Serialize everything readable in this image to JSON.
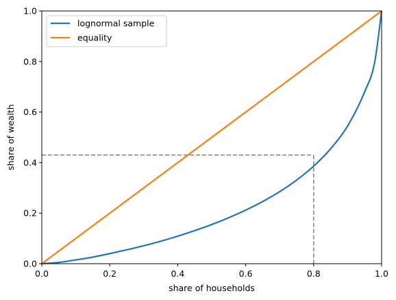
{
  "chart_data": {
    "type": "line",
    "title": "",
    "xlabel": "share of households",
    "ylabel": "share of wealth",
    "xlim": [
      0.0,
      1.0
    ],
    "ylim": [
      0.0,
      1.0
    ],
    "xticks": [
      "0.0",
      "0.2",
      "0.4",
      "0.6",
      "0.8",
      "1.0"
    ],
    "yticks": [
      "0.0",
      "0.2",
      "0.4",
      "0.6",
      "0.8",
      "1.0"
    ],
    "grid": false,
    "legend_position": "top-left",
    "series": [
      {
        "name": "lognormal sample",
        "color": "#1f77b4",
        "x": [
          0.0,
          0.05,
          0.1,
          0.15,
          0.2,
          0.25,
          0.3,
          0.35,
          0.4,
          0.45,
          0.5,
          0.55,
          0.6,
          0.65,
          0.7,
          0.75,
          0.8,
          0.85,
          0.9,
          0.95,
          0.98,
          1.0
        ],
        "y": [
          0.0,
          0.005,
          0.015,
          0.026,
          0.04,
          0.055,
          0.071,
          0.089,
          0.109,
          0.131,
          0.155,
          0.182,
          0.212,
          0.246,
          0.285,
          0.331,
          0.386,
          0.455,
          0.545,
          0.68,
          0.8,
          1.0
        ]
      },
      {
        "name": "equality",
        "color": "#ff7f0e",
        "x": [
          0.0,
          1.0
        ],
        "y": [
          0.0,
          1.0
        ]
      }
    ],
    "annotations": [
      {
        "type": "dashed-guide",
        "color": "#808080",
        "x": 0.8,
        "y": 0.43
      }
    ]
  }
}
